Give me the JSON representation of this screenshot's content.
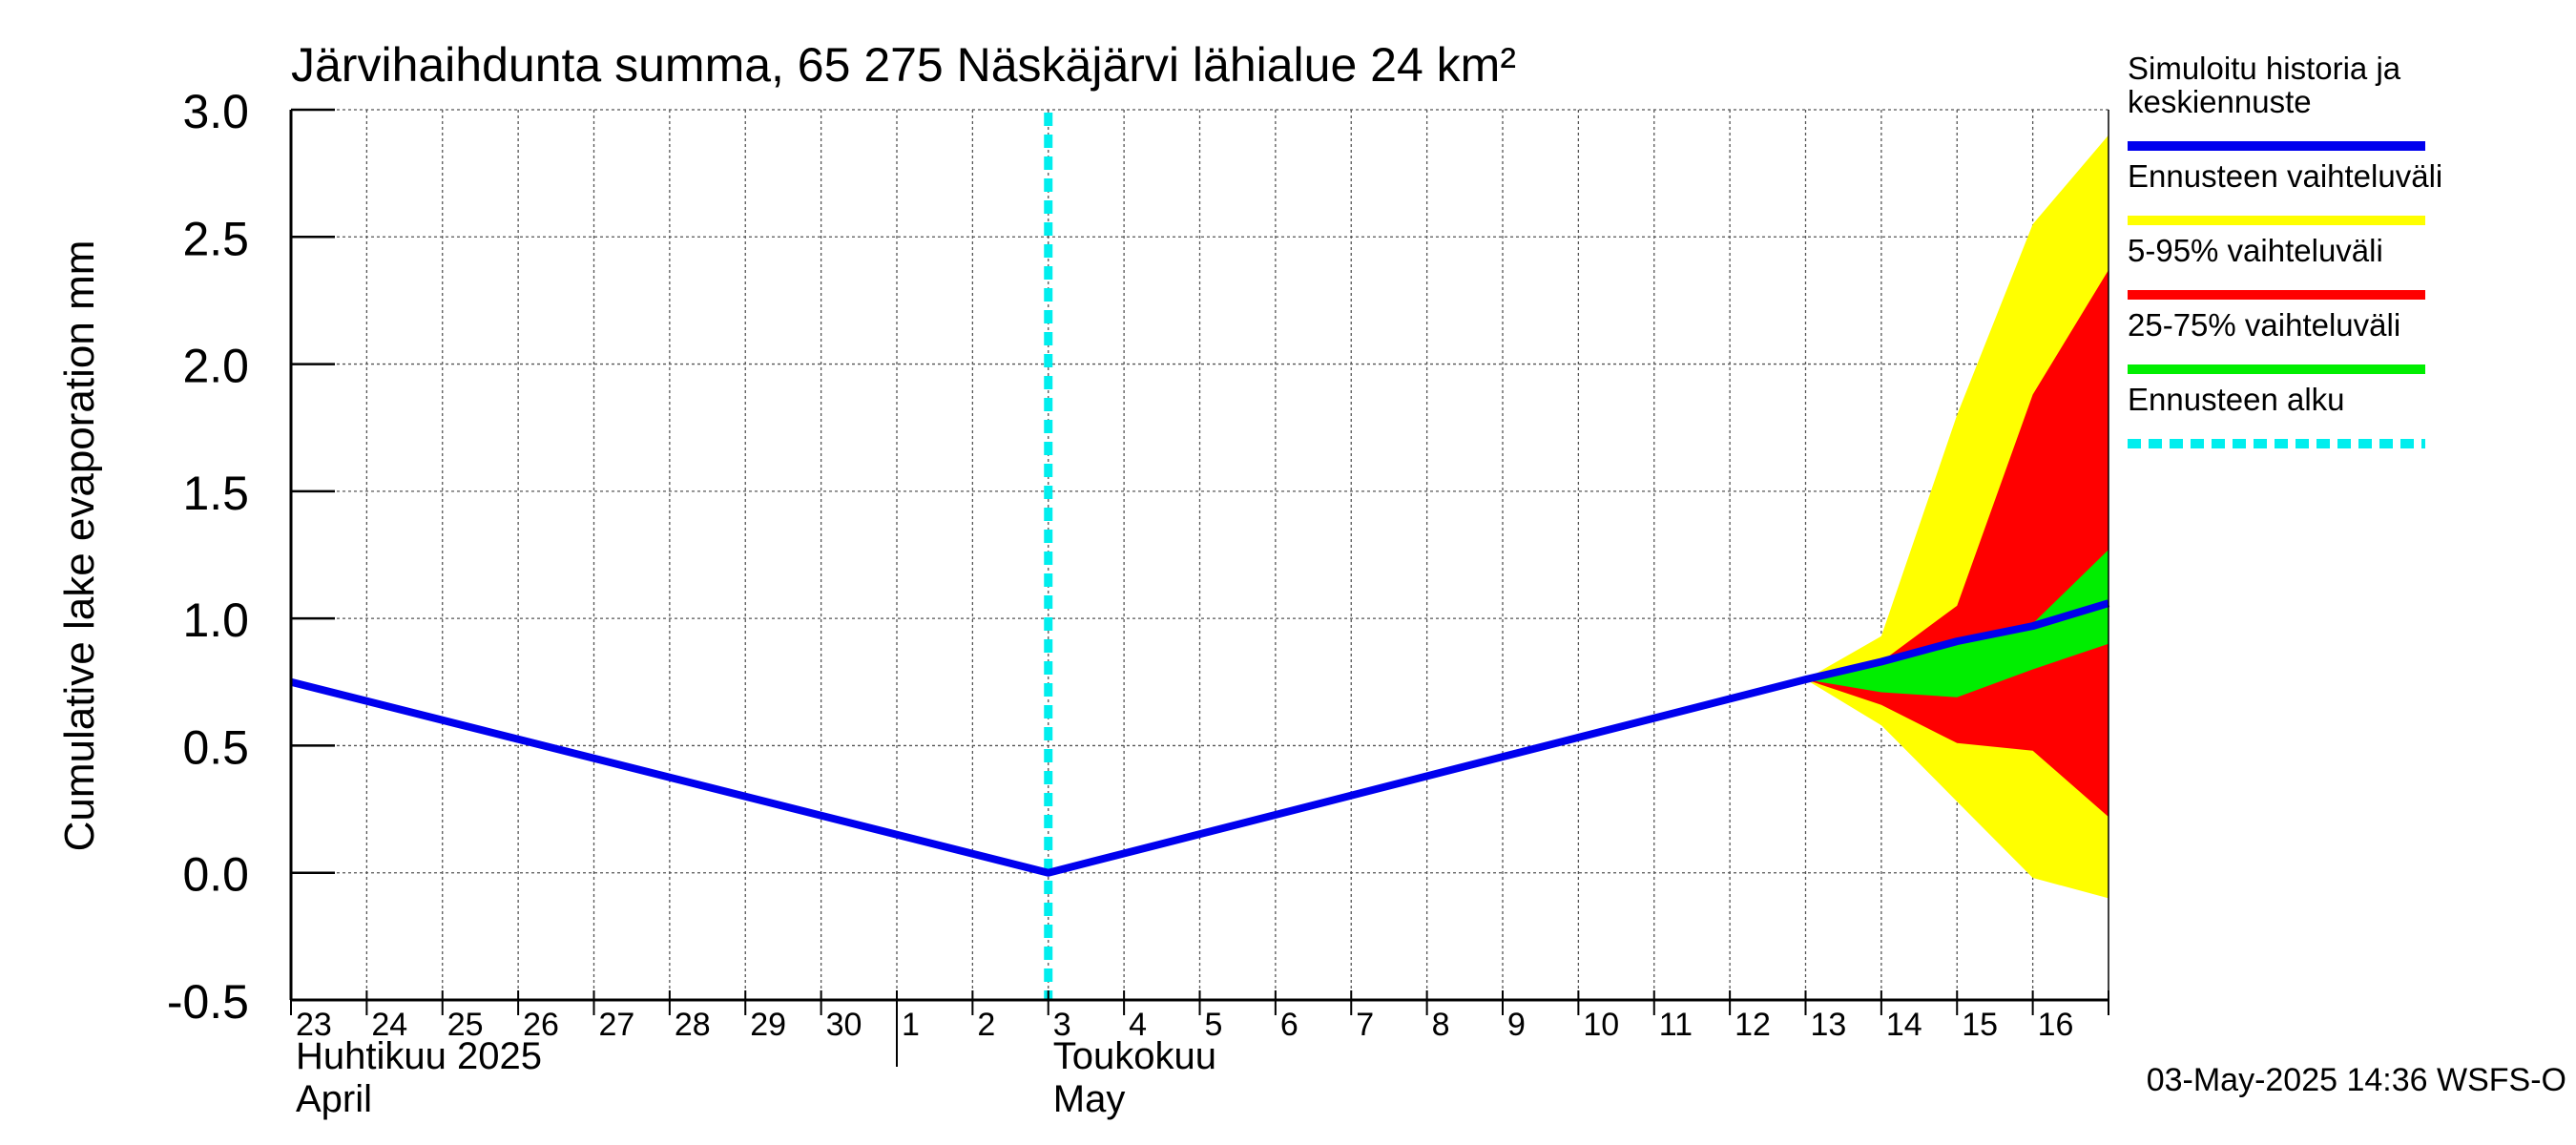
{
  "chart_data": {
    "type": "area",
    "title": "Järvihaihdunta summa, 65 275 Näskäjärvi lähialue 24 km²",
    "ylabel": "Cumulative lake evaporation   mm",
    "ylim": [
      -0.5,
      3.0
    ],
    "yticks": [
      "3.0",
      "2.5",
      "2.0",
      "1.5",
      "1.0",
      "0.5",
      "0.0",
      "-0.5"
    ],
    "ytick_values": [
      3.0,
      2.5,
      2.0,
      1.5,
      1.0,
      0.5,
      0.0,
      -0.5
    ],
    "xlim": [
      0,
      24
    ],
    "day_labels": [
      "23",
      "24",
      "25",
      "26",
      "27",
      "28",
      "29",
      "30",
      "1",
      "2",
      "3",
      "4",
      "5",
      "6",
      "7",
      "8",
      "9",
      "10",
      "11",
      "12",
      "13",
      "14",
      "15",
      "16"
    ],
    "month_labels": [
      {
        "fi": "Huhtikuu  2025",
        "en": "April",
        "x": 0
      },
      {
        "fi": "Toukokuu",
        "en": "May",
        "x": 10
      }
    ],
    "month_separator_x": 8,
    "forecast_start_x": 10,
    "grid": true,
    "series": [
      {
        "name": "Ennusteen vaihteluväli",
        "color": "#ffff00",
        "x": [
          20,
          21,
          22,
          23,
          24
        ],
        "upper": [
          0.76,
          0.93,
          1.8,
          2.55,
          2.9
        ],
        "lower": [
          0.76,
          0.58,
          0.28,
          -0.02,
          -0.1
        ]
      },
      {
        "name": "5-95% vaihteluväli",
        "color": "#ff0000",
        "x": [
          20,
          21,
          22,
          23,
          24
        ],
        "upper": [
          0.76,
          0.83,
          1.05,
          1.88,
          2.37
        ],
        "lower": [
          0.76,
          0.66,
          0.51,
          0.48,
          0.22
        ]
      },
      {
        "name": "25-75% vaihteluväli",
        "color": "#00ee00",
        "x": [
          20,
          21,
          22,
          23,
          24
        ],
        "upper": [
          0.76,
          0.82,
          0.92,
          0.98,
          1.27
        ],
        "lower": [
          0.76,
          0.71,
          0.69,
          0.8,
          0.9
        ]
      },
      {
        "name": "Simuloitu historia ja keskiennuste",
        "color": "#0000ee",
        "x": [
          0,
          10,
          20,
          21,
          22,
          23,
          24
        ],
        "values": [
          0.75,
          0.0,
          0.76,
          0.83,
          0.91,
          0.97,
          1.06
        ]
      }
    ],
    "legend": [
      {
        "label": "Simuloitu historia ja\nkeskiennuste",
        "color": "#0000ee",
        "style": "solid"
      },
      {
        "label": "Ennusteen vaihteluväli",
        "color": "#ffff00",
        "style": "solid"
      },
      {
        "label": "5-95% vaihteluväli",
        "color": "#ff0000",
        "style": "solid"
      },
      {
        "label": "25-75% vaihteluväli",
        "color": "#00ee00",
        "style": "solid"
      },
      {
        "label": "Ennusteen alku",
        "color": "#00eeee",
        "style": "dashed"
      }
    ],
    "legend_position": "right",
    "footer": "03-May-2025 14:36 WSFS-O"
  }
}
